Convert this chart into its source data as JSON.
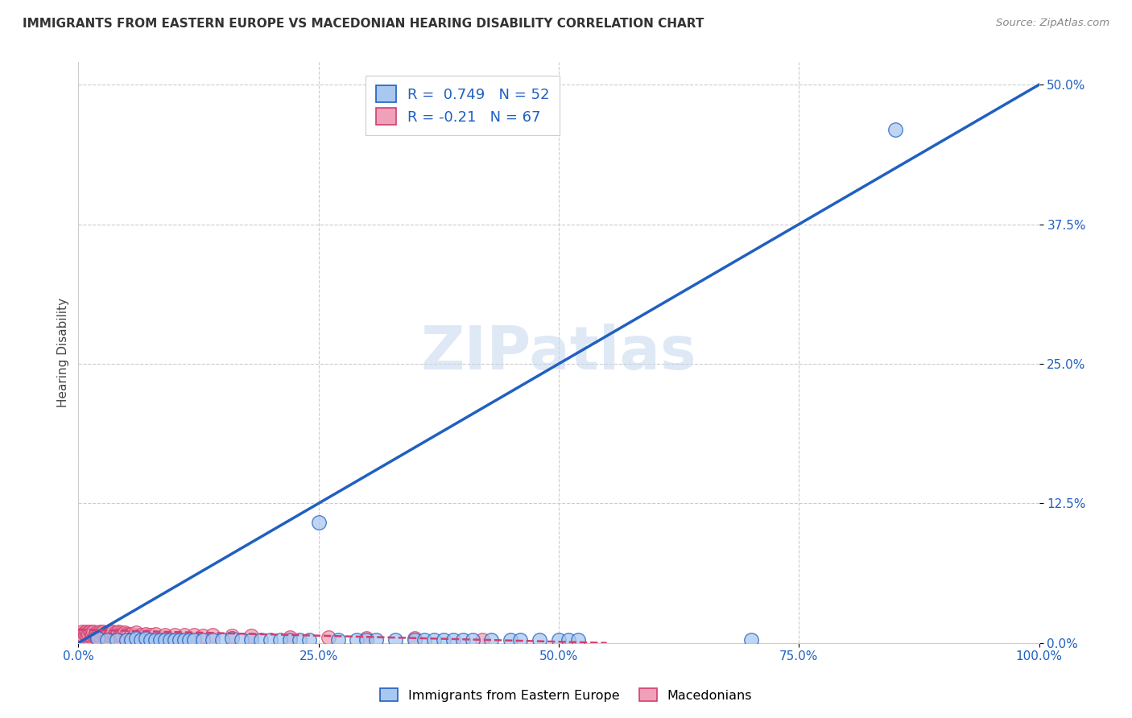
{
  "title": "IMMIGRANTS FROM EASTERN EUROPE VS MACEDONIAN HEARING DISABILITY CORRELATION CHART",
  "source": "Source: ZipAtlas.com",
  "ylabel": "Hearing Disability",
  "ytick_labels": [
    "0.0%",
    "12.5%",
    "25.0%",
    "37.5%",
    "50.0%"
  ],
  "ytick_values": [
    0.0,
    0.125,
    0.25,
    0.375,
    0.5
  ],
  "xtick_values": [
    0.0,
    0.25,
    0.5,
    0.75,
    1.0
  ],
  "xtick_labels": [
    "0.0%",
    "25.0%",
    "50.0%",
    "75.0%",
    "100.0%"
  ],
  "xlim": [
    0.0,
    1.0
  ],
  "ylim": [
    0.0,
    0.52
  ],
  "r_blue": 0.749,
  "n_blue": 52,
  "r_pink": -0.21,
  "n_pink": 67,
  "blue_color": "#a8c8f0",
  "blue_line_color": "#2060c0",
  "pink_color": "#f0a0b8",
  "pink_line_color": "#d04070",
  "watermark": "ZIPatlas",
  "legend_label_blue": "Immigrants from Eastern Europe",
  "legend_label_pink": "Macedonians",
  "blue_line_x": [
    0.0,
    1.0
  ],
  "blue_line_y": [
    0.0,
    0.5
  ],
  "pink_line_x": [
    0.0,
    0.55
  ],
  "pink_line_y": [
    0.012,
    0.0
  ],
  "blue_scatter_x": [
    0.02,
    0.03,
    0.04,
    0.05,
    0.055,
    0.06,
    0.065,
    0.07,
    0.075,
    0.08,
    0.085,
    0.09,
    0.095,
    0.1,
    0.105,
    0.11,
    0.115,
    0.12,
    0.13,
    0.14,
    0.15,
    0.16,
    0.17,
    0.18,
    0.19,
    0.2,
    0.21,
    0.22,
    0.23,
    0.24,
    0.25,
    0.27,
    0.29,
    0.3,
    0.31,
    0.33,
    0.35,
    0.36,
    0.37,
    0.38,
    0.39,
    0.4,
    0.41,
    0.43,
    0.45,
    0.46,
    0.48,
    0.5,
    0.51,
    0.52,
    0.7,
    0.85
  ],
  "blue_scatter_y": [
    0.004,
    0.003,
    0.003,
    0.003,
    0.003,
    0.004,
    0.003,
    0.004,
    0.003,
    0.003,
    0.003,
    0.003,
    0.003,
    0.003,
    0.003,
    0.003,
    0.003,
    0.003,
    0.003,
    0.003,
    0.003,
    0.004,
    0.003,
    0.003,
    0.003,
    0.003,
    0.003,
    0.003,
    0.003,
    0.003,
    0.108,
    0.003,
    0.003,
    0.003,
    0.003,
    0.003,
    0.003,
    0.003,
    0.003,
    0.003,
    0.003,
    0.003,
    0.003,
    0.003,
    0.003,
    0.003,
    0.003,
    0.003,
    0.003,
    0.003,
    0.003,
    0.46
  ],
  "pink_scatter_x": [
    0.003,
    0.004,
    0.005,
    0.006,
    0.007,
    0.008,
    0.009,
    0.01,
    0.011,
    0.012,
    0.013,
    0.014,
    0.015,
    0.016,
    0.017,
    0.018,
    0.019,
    0.02,
    0.021,
    0.022,
    0.023,
    0.024,
    0.025,
    0.026,
    0.027,
    0.028,
    0.029,
    0.03,
    0.031,
    0.032,
    0.033,
    0.034,
    0.035,
    0.036,
    0.037,
    0.038,
    0.039,
    0.04,
    0.041,
    0.042,
    0.043,
    0.044,
    0.045,
    0.046,
    0.048,
    0.05,
    0.052,
    0.055,
    0.058,
    0.06,
    0.065,
    0.07,
    0.075,
    0.08,
    0.09,
    0.1,
    0.11,
    0.12,
    0.13,
    0.14,
    0.16,
    0.18,
    0.22,
    0.26,
    0.3,
    0.35,
    0.42
  ],
  "pink_scatter_y": [
    0.008,
    0.01,
    0.007,
    0.009,
    0.008,
    0.01,
    0.007,
    0.009,
    0.008,
    0.01,
    0.007,
    0.009,
    0.008,
    0.01,
    0.007,
    0.008,
    0.009,
    0.007,
    0.008,
    0.01,
    0.007,
    0.009,
    0.008,
    0.01,
    0.007,
    0.008,
    0.009,
    0.007,
    0.008,
    0.01,
    0.007,
    0.009,
    0.008,
    0.01,
    0.007,
    0.008,
    0.009,
    0.007,
    0.008,
    0.01,
    0.007,
    0.009,
    0.008,
    0.007,
    0.009,
    0.008,
    0.007,
    0.008,
    0.007,
    0.009,
    0.007,
    0.008,
    0.007,
    0.008,
    0.007,
    0.007,
    0.007,
    0.007,
    0.006,
    0.007,
    0.006,
    0.006,
    0.005,
    0.005,
    0.004,
    0.004,
    0.003
  ]
}
